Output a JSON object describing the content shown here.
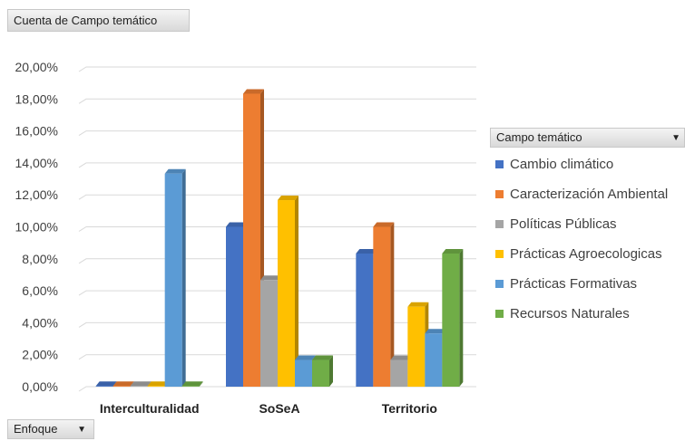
{
  "pivot": {
    "value_field": "Cuenta de Campo temático",
    "axis_field": "Enfoque",
    "legend_field": "Campo temático"
  },
  "icons": {
    "dropdown": "chevron-down-icon"
  },
  "chart_data": {
    "type": "bar",
    "categories": [
      "Interculturalidad",
      "SoSeA",
      "Territorio"
    ],
    "series": [
      {
        "name": "Cambio climático",
        "color": "#4472c4",
        "values": [
          0,
          10.0,
          8.33
        ]
      },
      {
        "name": "Caracterización Ambiental",
        "color": "#ed7d31",
        "values": [
          0,
          18.33,
          10.0
        ]
      },
      {
        "name": "Políticas Públicas",
        "color": "#a5a5a5",
        "values": [
          0,
          6.67,
          1.67
        ]
      },
      {
        "name": "Prácticas Agroecologicas",
        "color": "#ffc000",
        "values": [
          0,
          11.67,
          5.0
        ]
      },
      {
        "name": "Prácticas Formativas",
        "color": "#5b9bd5",
        "values": [
          13.33,
          1.67,
          3.33
        ]
      },
      {
        "name": "Recursos Naturales",
        "color": "#70ad47",
        "values": [
          0,
          1.67,
          8.33
        ]
      }
    ],
    "yticks": [
      "0,00%",
      "2,00%",
      "4,00%",
      "6,00%",
      "8,00%",
      "10,00%",
      "12,00%",
      "14,00%",
      "16,00%",
      "18,00%",
      "20,00%"
    ],
    "ylim": [
      0,
      20
    ],
    "grid": true,
    "legend_position": "right"
  }
}
